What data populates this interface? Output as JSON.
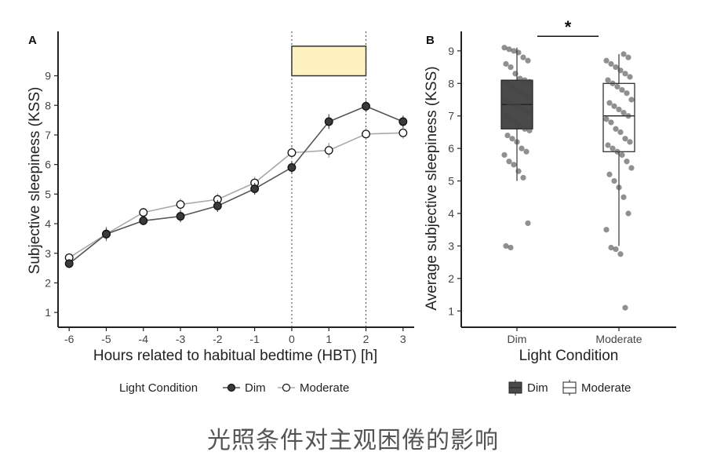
{
  "caption": "光照条件对主观困倦的影响",
  "colors": {
    "dim_fill": "#3a3a3a",
    "moderate_fill": "#ffffff",
    "box_dim": "#4a4a4a",
    "highlight": "#fdf2c0",
    "axis": "#222222"
  },
  "chart_data": [
    {
      "panel_label": "A",
      "type": "line",
      "xlabel": "Hours related to habitual bedtime (HBT) [h]",
      "ylabel": "Subjective sleepiness (KSS)",
      "xlim": [
        -6.3,
        3.3
      ],
      "ylim": [
        0.5,
        10.5
      ],
      "x": [
        -6,
        -5,
        -4,
        -3,
        -2,
        -1,
        0,
        1,
        2,
        3
      ],
      "x_tick_labels": [
        "-6",
        "-5",
        "-4",
        "-3",
        "-2",
        "-1",
        "0",
        "1",
        "2",
        "3"
      ],
      "y_ticks": [
        1,
        2,
        3,
        4,
        5,
        6,
        7,
        8,
        9
      ],
      "y_tick_labels": [
        "1",
        "2",
        "3",
        "4",
        "5",
        "6",
        "7",
        "8",
        "9"
      ],
      "series": [
        {
          "name": "Dim",
          "values": [
            2.65,
            3.65,
            4.1,
            4.25,
            4.6,
            5.18,
            5.9,
            7.45,
            7.97,
            7.45
          ],
          "err": [
            0.15,
            0.2,
            0.15,
            0.2,
            0.2,
            0.2,
            0.2,
            0.25,
            0.2,
            0.2
          ]
        },
        {
          "name": "Moderate",
          "values": [
            2.85,
            3.65,
            4.38,
            4.65,
            4.82,
            5.38,
            6.4,
            6.48,
            7.03,
            7.07
          ],
          "err": [
            0.15,
            0.25,
            0.15,
            0.2,
            0.2,
            0.2,
            0.2,
            0.25,
            0.2,
            0.2
          ]
        }
      ],
      "vlines": [
        0,
        2
      ],
      "highlight": {
        "x": [
          0,
          2
        ],
        "y": [
          9.0,
          10.0
        ]
      },
      "legend": {
        "title": "Light Condition",
        "entries": [
          "Dim",
          "Moderate"
        ],
        "placement": "bottom"
      }
    },
    {
      "panel_label": "B",
      "type": "box",
      "xlabel": "Light Condition",
      "ylabel": "Average subjective sleepiness (KSS)",
      "ylim": [
        0.5,
        9.6
      ],
      "y_ticks": [
        1,
        2,
        3,
        4,
        5,
        6,
        7,
        8,
        9
      ],
      "y_tick_labels": [
        "1",
        "2",
        "3",
        "4",
        "5",
        "6",
        "7",
        "8",
        "9"
      ],
      "categories": [
        "Dim",
        "Moderate"
      ],
      "boxes": [
        {
          "name": "Dim",
          "q1": 6.6,
          "median": 7.35,
          "q3": 8.1,
          "whisker_low": 5.0,
          "whisker_high": 9.1,
          "points": [
            9.1,
            9.05,
            9.0,
            8.95,
            8.8,
            8.7,
            8.6,
            8.5,
            8.3,
            8.15,
            8.1,
            8.05,
            8.0,
            7.9,
            7.8,
            7.7,
            7.6,
            7.5,
            7.4,
            7.35,
            7.3,
            7.2,
            7.1,
            7.0,
            6.9,
            6.8,
            6.7,
            6.6,
            6.55,
            6.4,
            6.3,
            6.2,
            6.0,
            5.9,
            5.8,
            5.6,
            5.5,
            5.3,
            5.1,
            3.7,
            3.0,
            2.95
          ]
        },
        {
          "name": "Moderate",
          "q1": 5.9,
          "median": 7.0,
          "q3": 8.0,
          "whisker_low": 3.0,
          "whisker_high": 8.9,
          "points": [
            8.9,
            8.8,
            8.7,
            8.6,
            8.5,
            8.4,
            8.3,
            8.2,
            8.1,
            8.0,
            7.9,
            7.8,
            7.7,
            7.5,
            7.4,
            7.3,
            7.2,
            7.1,
            7.0,
            6.9,
            6.8,
            6.6,
            6.5,
            6.3,
            6.2,
            6.1,
            6.0,
            5.9,
            5.8,
            5.6,
            5.4,
            5.2,
            5.0,
            4.8,
            4.5,
            4.0,
            3.5,
            2.95,
            2.9,
            2.75,
            1.1
          ]
        }
      ],
      "significance": "*",
      "legend": {
        "entries": [
          "Dim",
          "Moderate"
        ],
        "placement": "bottom"
      }
    }
  ]
}
